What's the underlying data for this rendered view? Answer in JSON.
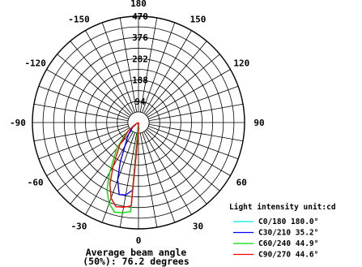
{
  "chart_data": {
    "type": "polar",
    "title_lines": [
      "Average beam angle",
      "(50%): 76.2 degrees"
    ],
    "unit_label": "Light intensity unit:cd",
    "radial_ticks": [
      94,
      188,
      282,
      376,
      470
    ],
    "radial_max": 470,
    "angle_ticks": [
      {
        "angle": 0,
        "label": "0"
      },
      {
        "angle": 30,
        "label": "30"
      },
      {
        "angle": 60,
        "label": "60"
      },
      {
        "angle": 90,
        "label": "90"
      },
      {
        "angle": 120,
        "label": "120"
      },
      {
        "angle": 150,
        "label": "150"
      },
      {
        "angle": 180,
        "label": "180"
      },
      {
        "angle": -30,
        "label": "-30"
      },
      {
        "angle": -60,
        "label": "-60"
      },
      {
        "angle": -90,
        "label": "-90"
      },
      {
        "angle": -120,
        "label": "-120"
      },
      {
        "angle": -150,
        "label": "-150"
      }
    ],
    "series": [
      {
        "name": "C0/180 180.0°",
        "color": "#00e5e5",
        "points": [
          [
            -90,
            0
          ],
          [
            90,
            0
          ]
        ]
      },
      {
        "name": "C30/210 35.2°",
        "color": "#0000ff",
        "points": [
          [
            0,
            0
          ],
          [
            -5,
            300
          ],
          [
            -10,
            325
          ],
          [
            -15,
            330
          ],
          [
            -20,
            270
          ],
          [
            -25,
            190
          ],
          [
            -30,
            120
          ],
          [
            -40,
            70
          ],
          [
            -50,
            35
          ],
          [
            -60,
            10
          ],
          [
            -70,
            0
          ]
        ]
      },
      {
        "name": "C60/240 44.9°",
        "color": "#00e000",
        "points": [
          [
            0,
            0
          ],
          [
            -5,
            395
          ],
          [
            -10,
            405
          ],
          [
            -15,
            410
          ],
          [
            -20,
            380
          ],
          [
            -25,
            330
          ],
          [
            -30,
            255
          ],
          [
            -40,
            150
          ],
          [
            -50,
            70
          ],
          [
            -60,
            20
          ],
          [
            -70,
            0
          ]
        ]
      },
      {
        "name": "C90/270 44.6°",
        "color": "#ff0000",
        "points": [
          [
            0,
            0
          ],
          [
            2,
            30
          ],
          [
            -5,
            370
          ],
          [
            -10,
            380
          ],
          [
            -15,
            385
          ],
          [
            -20,
            355
          ],
          [
            -25,
            300
          ],
          [
            -30,
            225
          ],
          [
            -40,
            130
          ],
          [
            -50,
            60
          ],
          [
            -60,
            15
          ],
          [
            -70,
            0
          ]
        ]
      }
    ]
  }
}
